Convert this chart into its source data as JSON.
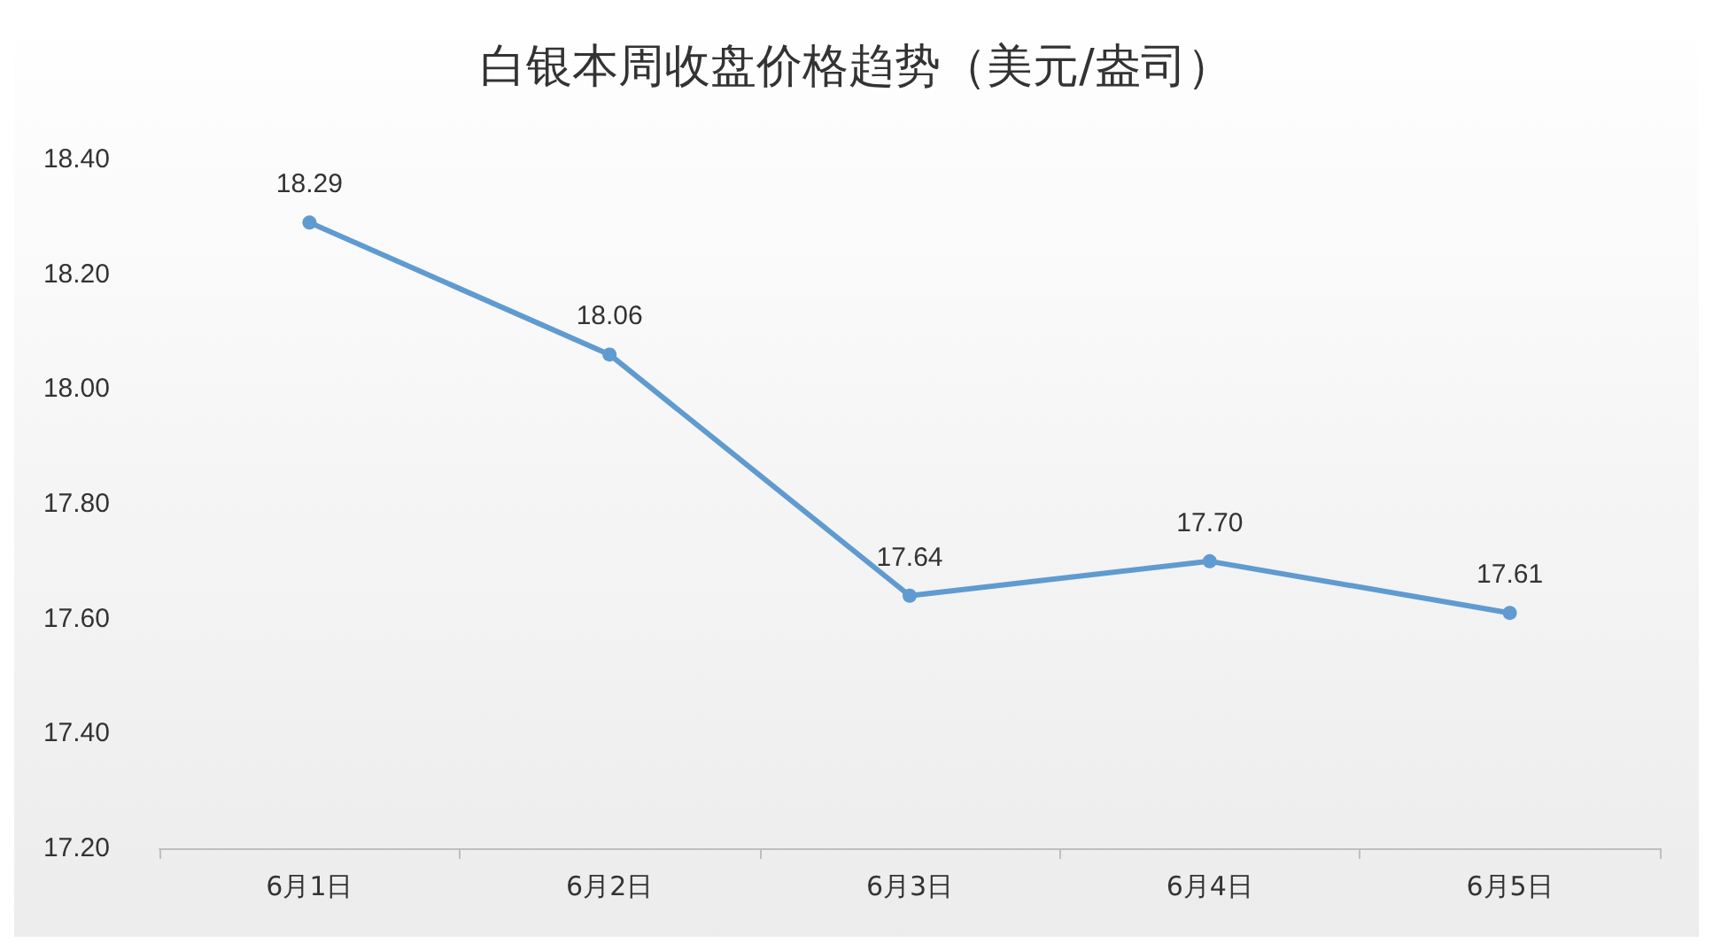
{
  "chart_data": {
    "type": "line",
    "title": "白银本周收盘价格趋势（美元/盎司）",
    "categories": [
      "6月1日",
      "6月2日",
      "6月3日",
      "6月4日",
      "6月5日"
    ],
    "series": [
      {
        "color": "#5f9bd0",
        "values": [
          18.29,
          18.06,
          17.64,
          17.7,
          17.61
        ],
        "value_labels": [
          "18.29",
          "18.06",
          "17.64",
          "17.70",
          "17.61"
        ]
      }
    ],
    "ylim": [
      17.2,
      18.4
    ],
    "yticks": [
      {
        "value": 17.2,
        "label": "17.20"
      },
      {
        "value": 17.4,
        "label": "17.40"
      },
      {
        "value": 17.6,
        "label": "17.60"
      },
      {
        "value": 17.8,
        "label": "17.80"
      },
      {
        "value": 18.0,
        "label": "18.00"
      },
      {
        "value": 18.2,
        "label": "18.20"
      },
      {
        "value": 18.4,
        "label": "18.40"
      }
    ],
    "grid": false,
    "marker": "circle",
    "line_style": "solid"
  }
}
